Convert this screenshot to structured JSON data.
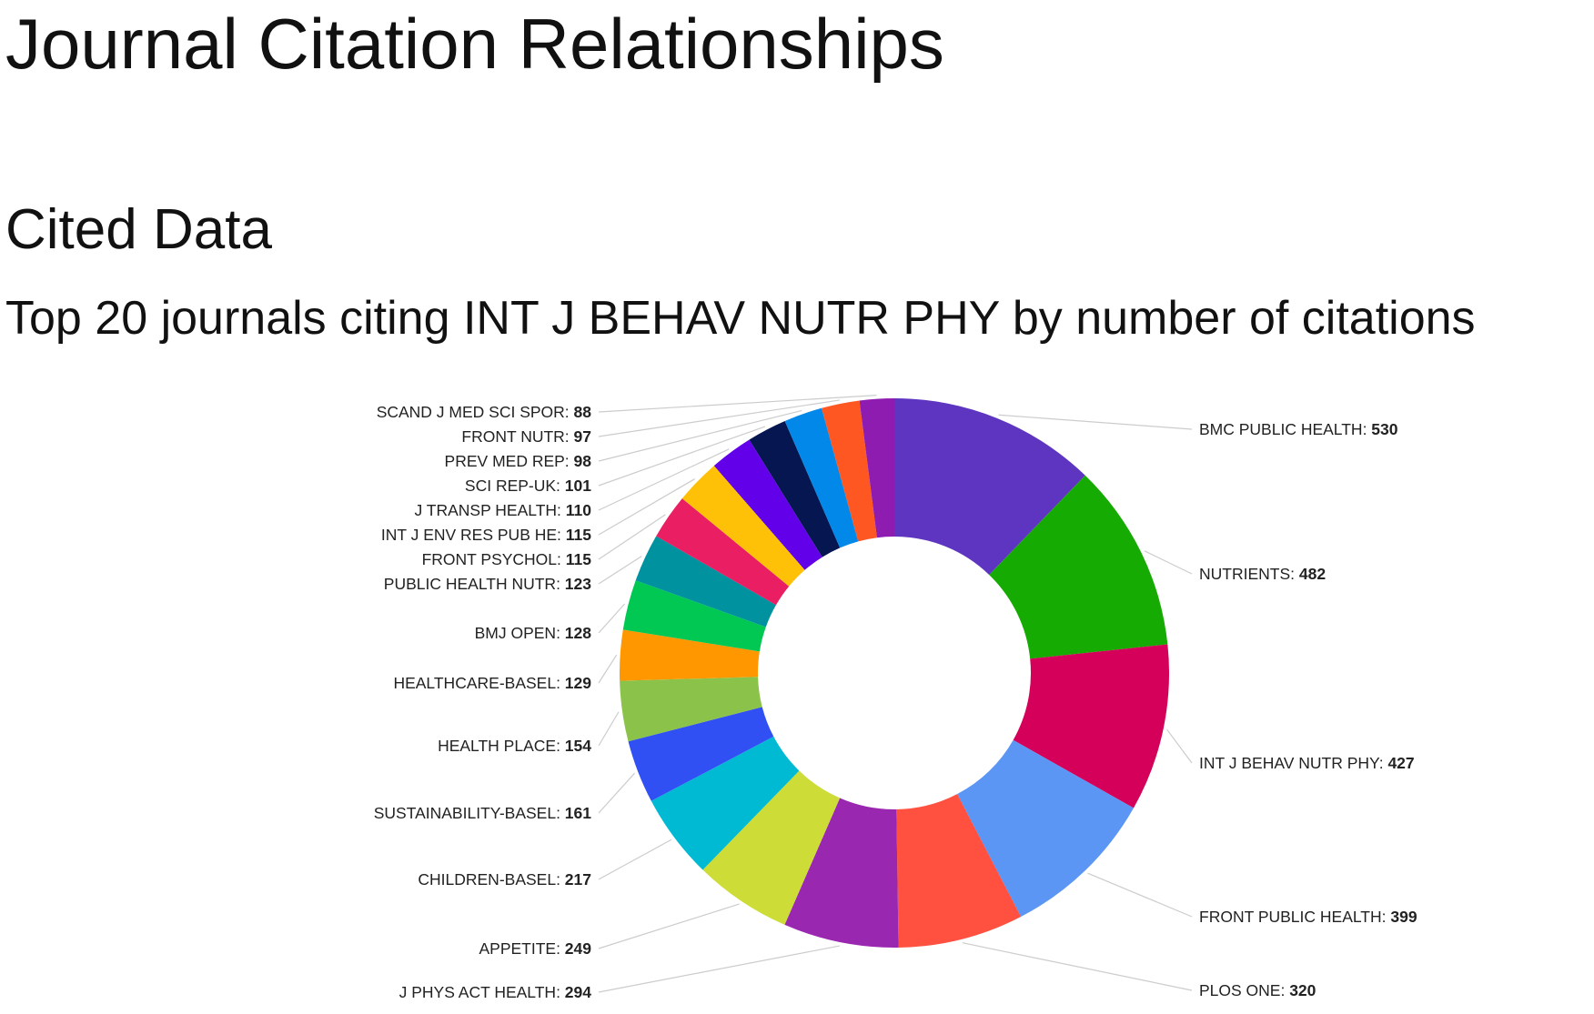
{
  "page": {
    "title": "Journal Citation Relationships",
    "section_title": "Cited Data"
  },
  "chart_data": {
    "type": "pie",
    "donut": true,
    "title": "Top 20 journals citing INT J BEHAV NUTR PHY by number of citations",
    "legend": "none",
    "slices": [
      {
        "label": "BMC PUBLIC HEALTH",
        "value": 530,
        "color": "#5e35c0"
      },
      {
        "label": "NUTRIENTS",
        "value": 482,
        "color": "#16ab02"
      },
      {
        "label": "INT J BEHAV NUTR PHY",
        "value": 427,
        "color": "#d40059"
      },
      {
        "label": "FRONT PUBLIC HEALTH",
        "value": 399,
        "color": "#5b96f5"
      },
      {
        "label": "PLOS ONE",
        "value": 320,
        "color": "#ff5040"
      },
      {
        "label": "J PHYS ACT HEALTH",
        "value": 294,
        "color": "#9a27b0"
      },
      {
        "label": "APPETITE",
        "value": 249,
        "color": "#cddc37"
      },
      {
        "label": "CHILDREN-BASEL",
        "value": 217,
        "color": "#00bad4"
      },
      {
        "label": "SUSTAINABILITY-BASEL",
        "value": 161,
        "color": "#3150f3"
      },
      {
        "label": "HEALTH PLACE",
        "value": 154,
        "color": "#8bc34a"
      },
      {
        "label": "HEALTHCARE-BASEL",
        "value": 129,
        "color": "#ff9800"
      },
      {
        "label": "BMJ OPEN",
        "value": 128,
        "color": "#00c853"
      },
      {
        "label": "PUBLIC HEALTH NUTR",
        "value": 123,
        "color": "#00939f"
      },
      {
        "label": "FRONT PSYCHOL",
        "value": 115,
        "color": "#e91e63"
      },
      {
        "label": "INT J ENV RES PUB HE",
        "value": 115,
        "color": "#ffc107"
      },
      {
        "label": "J TRANSP HEALTH",
        "value": 110,
        "color": "#6200ea"
      },
      {
        "label": "SCI REP-UK",
        "value": 101,
        "color": "#051650"
      },
      {
        "label": "PREV MED REP",
        "value": 98,
        "color": "#0288e8"
      },
      {
        "label": "FRONT NUTR",
        "value": 97,
        "color": "#ff5722"
      },
      {
        "label": "SCAND J MED SCI SPOR",
        "value": 88,
        "color": "#8e1cb0"
      }
    ]
  }
}
